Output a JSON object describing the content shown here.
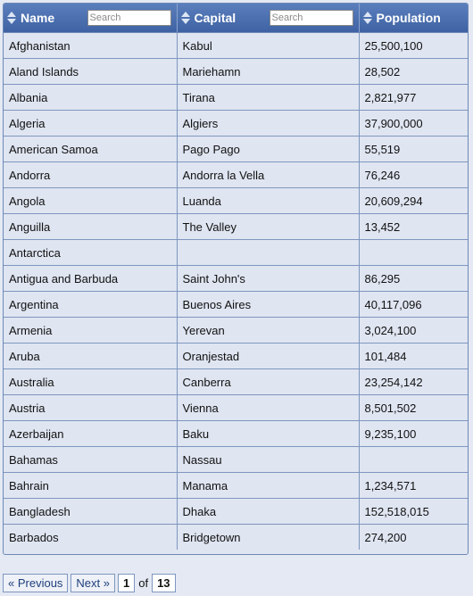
{
  "table": {
    "columns": [
      {
        "label": "Name",
        "search_placeholder": "Search"
      },
      {
        "label": "Capital",
        "search_placeholder": "Search"
      },
      {
        "label": "Population"
      }
    ],
    "rows": [
      {
        "name": "Afghanistan",
        "capital": "Kabul",
        "population": "25,500,100"
      },
      {
        "name": "Aland Islands",
        "capital": "Mariehamn",
        "population": "28,502"
      },
      {
        "name": "Albania",
        "capital": "Tirana",
        "population": "2,821,977"
      },
      {
        "name": "Algeria",
        "capital": "Algiers",
        "population": "37,900,000"
      },
      {
        "name": "American Samoa",
        "capital": "Pago Pago",
        "population": "55,519"
      },
      {
        "name": "Andorra",
        "capital": "Andorra la Vella",
        "population": "76,246"
      },
      {
        "name": "Angola",
        "capital": "Luanda",
        "population": "20,609,294"
      },
      {
        "name": "Anguilla",
        "capital": "The Valley",
        "population": "13,452"
      },
      {
        "name": "Antarctica",
        "capital": "",
        "population": ""
      },
      {
        "name": "Antigua and Barbuda",
        "capital": "Saint John's",
        "population": "86,295"
      },
      {
        "name": "Argentina",
        "capital": "Buenos Aires",
        "population": "40,117,096"
      },
      {
        "name": "Armenia",
        "capital": "Yerevan",
        "population": "3,024,100"
      },
      {
        "name": "Aruba",
        "capital": "Oranjestad",
        "population": "101,484"
      },
      {
        "name": "Australia",
        "capital": "Canberra",
        "population": "23,254,142"
      },
      {
        "name": "Austria",
        "capital": "Vienna",
        "population": "8,501,502"
      },
      {
        "name": "Azerbaijan",
        "capital": "Baku",
        "population": "9,235,100"
      },
      {
        "name": "Bahamas",
        "capital": "Nassau",
        "population": ""
      },
      {
        "name": "Bahrain",
        "capital": "Manama",
        "population": "1,234,571"
      },
      {
        "name": "Bangladesh",
        "capital": "Dhaka",
        "population": "152,518,015"
      },
      {
        "name": "Barbados",
        "capital": "Bridgetown",
        "population": "274,200"
      }
    ]
  },
  "pager": {
    "prev_label": "« Previous",
    "next_label": "Next »",
    "current_page": "1",
    "of_label": "of",
    "total_pages": "13"
  },
  "colors": {
    "header_top": "#5b7fbd",
    "header_bottom": "#3e62a3",
    "row_bg": "#dfe5f1",
    "border": "#7e96bf",
    "link": "#1d3f7c"
  },
  "icons": {
    "sort": "sort-updown-icon"
  }
}
